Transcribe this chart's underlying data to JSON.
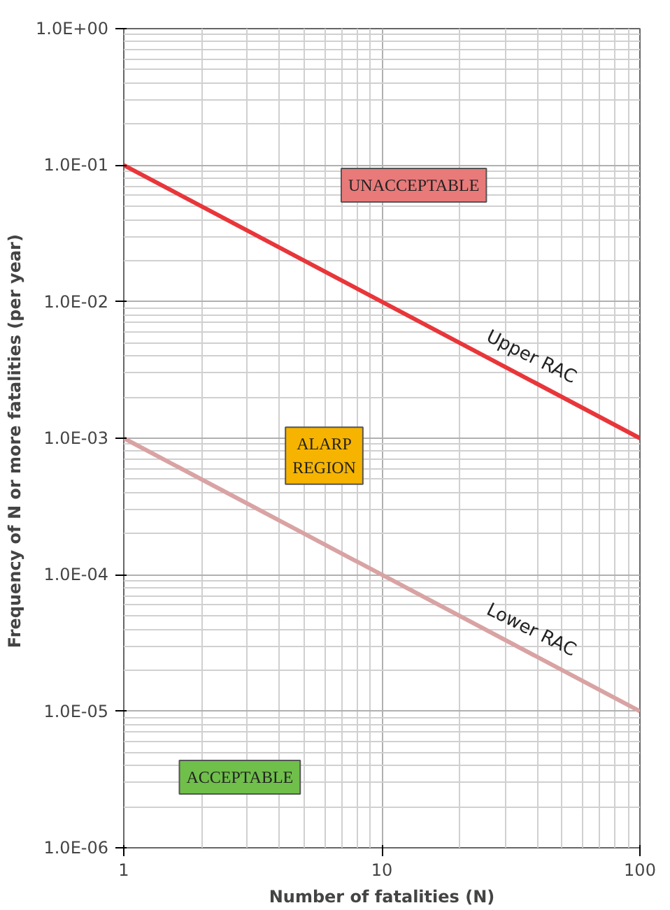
{
  "chart_data": {
    "type": "line",
    "xlabel": "Number of fatalities (N)",
    "ylabel": "Frequency of N or more fatalities  (per year)",
    "log": "xy",
    "grid": true,
    "marker": "none",
    "line_style": "solid",
    "xlim": [
      1,
      100
    ],
    "ylim": [
      1e-06,
      1
    ],
    "xticks": [
      1,
      10,
      100
    ],
    "yticks": [
      {
        "value": 1e-06,
        "label": "1.0E-06"
      },
      {
        "value": 1e-05,
        "label": "1.0E-05"
      },
      {
        "value": 0.0001,
        "label": "1.0E-04"
      },
      {
        "value": 0.001,
        "label": "1.0E-03"
      },
      {
        "value": 0.01,
        "label": "1.0E-02"
      },
      {
        "value": 0.1,
        "label": "1.0E-01"
      },
      {
        "value": 1,
        "label": "1.0E+00"
      }
    ],
    "x": [
      1,
      100
    ],
    "series": [
      {
        "name": "Upper RAC",
        "color": "#e8363a",
        "values": [
          0.1,
          0.001
        ]
      },
      {
        "name": "Lower RAC",
        "color": "#d9a3a3",
        "values": [
          0.001,
          1e-05
        ]
      }
    ],
    "annotations": [
      "UNACCEPTABLE",
      "ALARP\nREGION",
      "ACCEPTABLE"
    ]
  }
}
